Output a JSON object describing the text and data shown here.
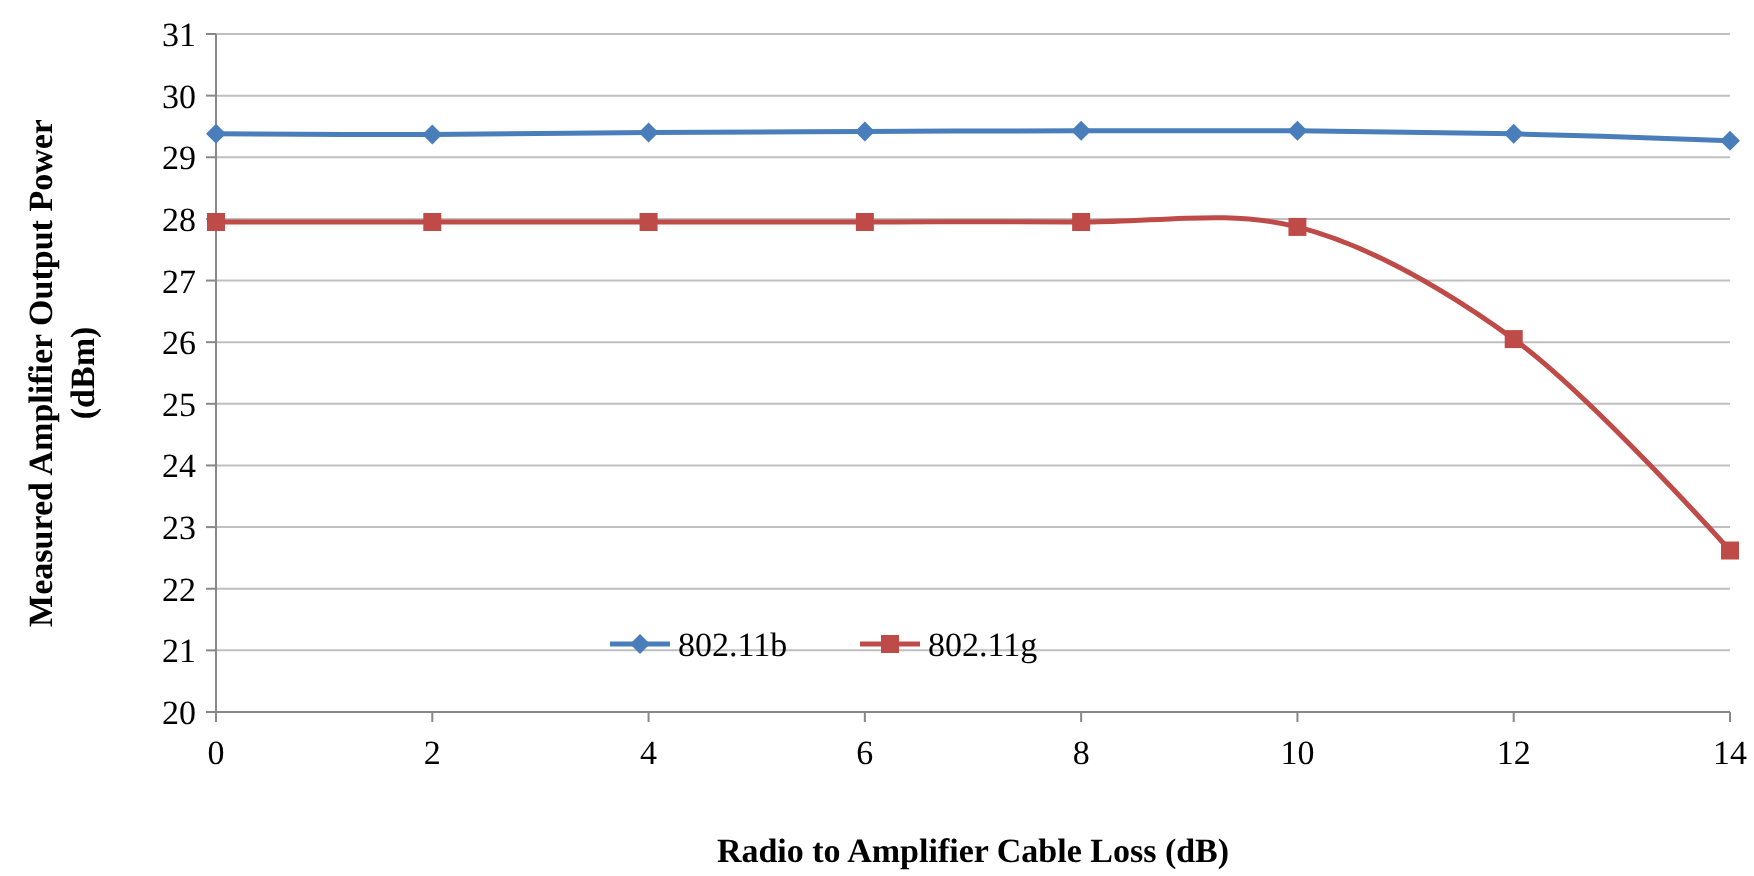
{
  "chart_data": {
    "type": "line",
    "xlabel": "Radio to Amplifier Cable Loss (dB)",
    "ylabel": "Measured Amplifier Output Power (dBm)",
    "x": [
      0,
      2,
      4,
      6,
      8,
      10,
      12,
      14
    ],
    "xlim": [
      0,
      14
    ],
    "xticks": [
      0,
      2,
      4,
      6,
      8,
      10,
      12,
      14
    ],
    "ylim": [
      20,
      31
    ],
    "yticks": [
      20,
      21,
      22,
      23,
      24,
      25,
      26,
      27,
      28,
      29,
      30,
      31
    ],
    "grid": "y",
    "legend": "bottom",
    "series": [
      {
        "name": "802.11b",
        "color": "#4a7ebb",
        "marker": "diamond",
        "values": [
          29.38,
          29.37,
          29.4,
          29.42,
          29.43,
          29.43,
          29.38,
          29.27
        ]
      },
      {
        "name": "802.11g",
        "color": "#be4b48",
        "marker": "square",
        "values": [
          27.95,
          27.95,
          27.95,
          27.95,
          27.95,
          27.87,
          26.05,
          22.62
        ]
      }
    ]
  }
}
